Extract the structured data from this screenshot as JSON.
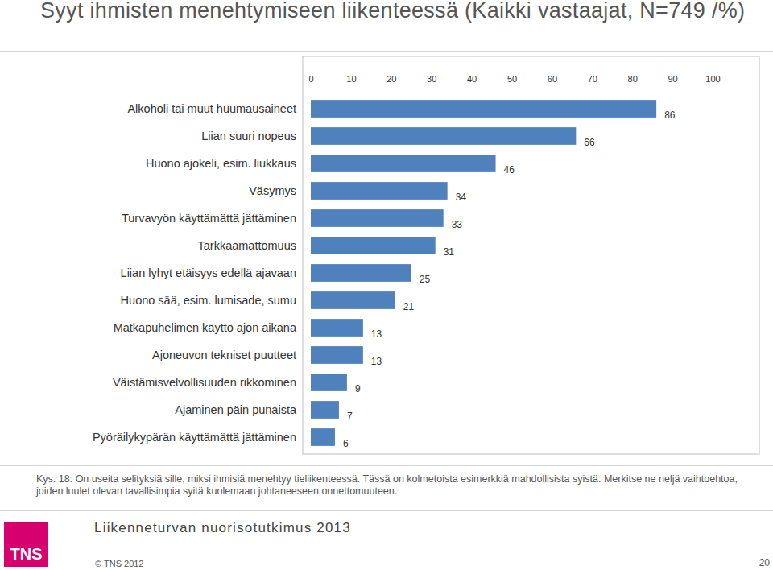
{
  "chart_data": {
    "type": "bar",
    "orientation": "horizontal",
    "title": "Syyt ihmisten menehtymiseen liikenteessä (Kaikki vastaajat, N=749 /%)",
    "categories": [
      "Alkoholi tai muut huumausaineet",
      "Liian suuri nopeus",
      "Huono ajokeli, esim. liukkaus",
      "Väsymys",
      "Turvavyön käyttämättä jättäminen",
      "Tarkkaamattomuus",
      "Liian lyhyt etäisyys edellä ajavaan",
      "Huono sää, esim. lumisade, sumu",
      "Matkapuhelimen käyttö ajon aikana",
      "Ajoneuvon tekniset puutteet",
      "Väistämisvelvollisuuden rikkominen",
      "Ajaminen päin punaista",
      "Pyöräilykypärän käyttämättä jättäminen"
    ],
    "values": [
      86,
      66,
      46,
      34,
      33,
      31,
      25,
      21,
      13,
      13,
      9,
      7,
      6
    ],
    "color": "#4f81bd",
    "xlim": [
      0,
      100
    ],
    "xticks": [
      0,
      10,
      20,
      30,
      40,
      50,
      60,
      70,
      80,
      90,
      100
    ],
    "data_labels": true
  },
  "page": {
    "note": "Kys. 18: On useita selityksiä sille, miksi ihmisiä menehtyy tieliikenteessä. Tässä on kolmetoista esimerkkiä mahdollisista syistä. Merkitse ne neljä vaihtoehtoa, joiden luulet olevan tavallisimpia syitä kuolemaan johtaneeseen onnettomuuteen.",
    "footer": "Liikenneturvan nuorisotutkimus 2013",
    "logo": "TNS",
    "copyright": "© TNS 2012",
    "page_number": 20
  }
}
